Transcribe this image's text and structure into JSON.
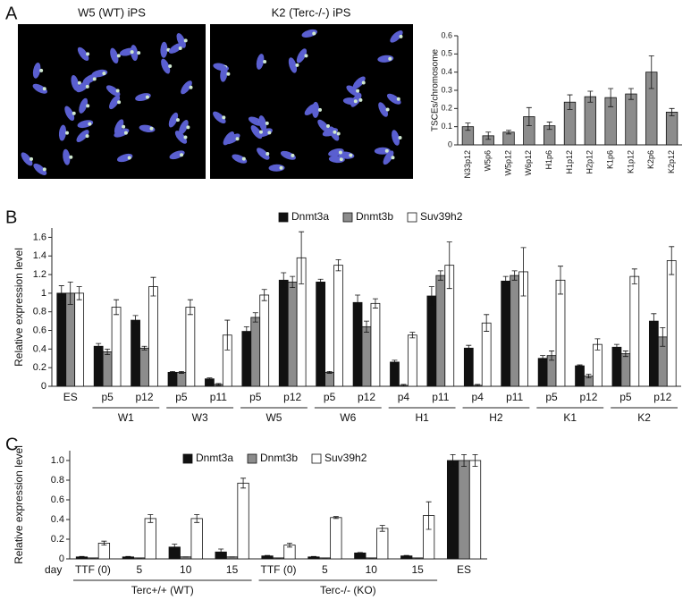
{
  "panel_labels": [
    "A",
    "B",
    "C"
  ],
  "images": [
    {
      "title": "W5 (WT) iPS"
    },
    {
      "title": "K2 (Terc-/-) iPS"
    }
  ],
  "chart_data": [
    {
      "type": "bar",
      "ylabel": "TSCEs/chromosome",
      "categories": [
        "N33p12",
        "W5p6",
        "W5p12",
        "W6p12",
        "H1p6",
        "H1p12",
        "H2p12",
        "K1p6",
        "K1p12",
        "K2p6",
        "K2p12"
      ],
      "series": [
        {
          "color": "#8c8c8c",
          "values": [
            0.1,
            0.05,
            0.07,
            0.155,
            0.105,
            0.235,
            0.265,
            0.26,
            0.28,
            0.4,
            0.18
          ],
          "errors": [
            0.02,
            0.02,
            0.01,
            0.05,
            0.02,
            0.04,
            0.03,
            0.05,
            0.03,
            0.09,
            0.02
          ]
        }
      ],
      "ylim": [
        0,
        0.6
      ],
      "yticks": [
        0,
        0.1,
        0.2,
        0.3,
        0.4,
        0.5,
        0.6
      ]
    },
    {
      "type": "bar",
      "ylabel": "Relative expression level",
      "categories": [
        "ES",
        "p5",
        "p12",
        "p5",
        "p11",
        "p5",
        "p12",
        "p5",
        "p12",
        "p4",
        "p11",
        "p4",
        "p11",
        "p5",
        "p12",
        "p5",
        "p12"
      ],
      "groups": [
        "W1",
        "W3",
        "W5",
        "W6",
        "H1",
        "H2",
        "K1",
        "K2"
      ],
      "series": [
        {
          "name": "Dnmt3a",
          "color": "#111111",
          "values": [
            1.0,
            0.43,
            0.71,
            0.15,
            0.08,
            0.59,
            1.14,
            1.12,
            0.9,
            0.26,
            0.97,
            0.41,
            1.13,
            0.3,
            0.22,
            0.42,
            0.7
          ],
          "errors": [
            0.08,
            0.03,
            0.05,
            0.01,
            0.01,
            0.05,
            0.08,
            0.03,
            0.08,
            0.02,
            0.1,
            0.03,
            0.05,
            0.03,
            0.01,
            0.03,
            0.08
          ]
        },
        {
          "name": "Dnmt3b",
          "color": "#8c8c8c",
          "values": [
            1.0,
            0.37,
            0.41,
            0.15,
            0.02,
            0.74,
            1.12,
            0.15,
            0.64,
            0.01,
            1.19,
            0.01,
            1.19,
            0.33,
            0.11,
            0.35,
            0.53
          ],
          "errors": [
            0.12,
            0.03,
            0.02,
            0.01,
            0.01,
            0.05,
            0.06,
            0.01,
            0.06,
            0.01,
            0.05,
            0.01,
            0.05,
            0.05,
            0.02,
            0.03,
            0.1
          ]
        },
        {
          "name": "Suv39h2",
          "color": "#ffffff",
          "values": [
            1.0,
            0.85,
            1.07,
            0.85,
            0.55,
            0.98,
            1.38,
            1.3,
            0.89,
            0.55,
            1.3,
            0.68,
            1.23,
            1.14,
            0.45,
            1.18,
            1.35
          ],
          "errors": [
            0.07,
            0.08,
            0.1,
            0.08,
            0.16,
            0.06,
            0.28,
            0.06,
            0.05,
            0.03,
            0.25,
            0.09,
            0.26,
            0.15,
            0.06,
            0.08,
            0.15
          ]
        }
      ],
      "ylim": [
        0,
        1.7
      ],
      "yticks": [
        0,
        0.2,
        0.4,
        0.6,
        0.8,
        1,
        1.2,
        1.4,
        1.6
      ]
    },
    {
      "type": "bar",
      "ylabel": "Relative expression level",
      "xlabel": "day",
      "categories": [
        "TTF (0)",
        "5",
        "10",
        "15",
        "TTF (0)",
        "5",
        "10",
        "15",
        "ES"
      ],
      "groups": [
        "Terc+/+ (WT)",
        "Terc-/- (KO)"
      ],
      "series": [
        {
          "name": "Dnmt3a",
          "color": "#111111",
          "values": [
            0.02,
            0.02,
            0.12,
            0.07,
            0.03,
            0.02,
            0.06,
            0.03,
            1.0
          ],
          "errors": [
            0.005,
            0.005,
            0.03,
            0.03,
            0.005,
            0.005,
            0.005,
            0.005,
            0.06
          ]
        },
        {
          "name": "Dnmt3b",
          "color": "#8c8c8c",
          "values": [
            0.01,
            0.01,
            0.02,
            0.02,
            0.01,
            0.01,
            0.01,
            0.01,
            1.0
          ],
          "errors": [
            0,
            0,
            0,
            0,
            0,
            0,
            0,
            0,
            0.06
          ]
        },
        {
          "name": "Suv39h2",
          "color": "#ffffff",
          "values": [
            0.16,
            0.41,
            0.41,
            0.77,
            0.14,
            0.42,
            0.31,
            0.44,
            1.0
          ],
          "errors": [
            0.02,
            0.04,
            0.04,
            0.05,
            0.02,
            0.01,
            0.03,
            0.14,
            0.06
          ]
        }
      ],
      "ylim": [
        0,
        1.1
      ],
      "yticks": [
        0,
        0.2,
        0.4,
        0.6,
        0.8,
        {
          "value": 1,
          "label": "1.0"
        }
      ]
    }
  ]
}
